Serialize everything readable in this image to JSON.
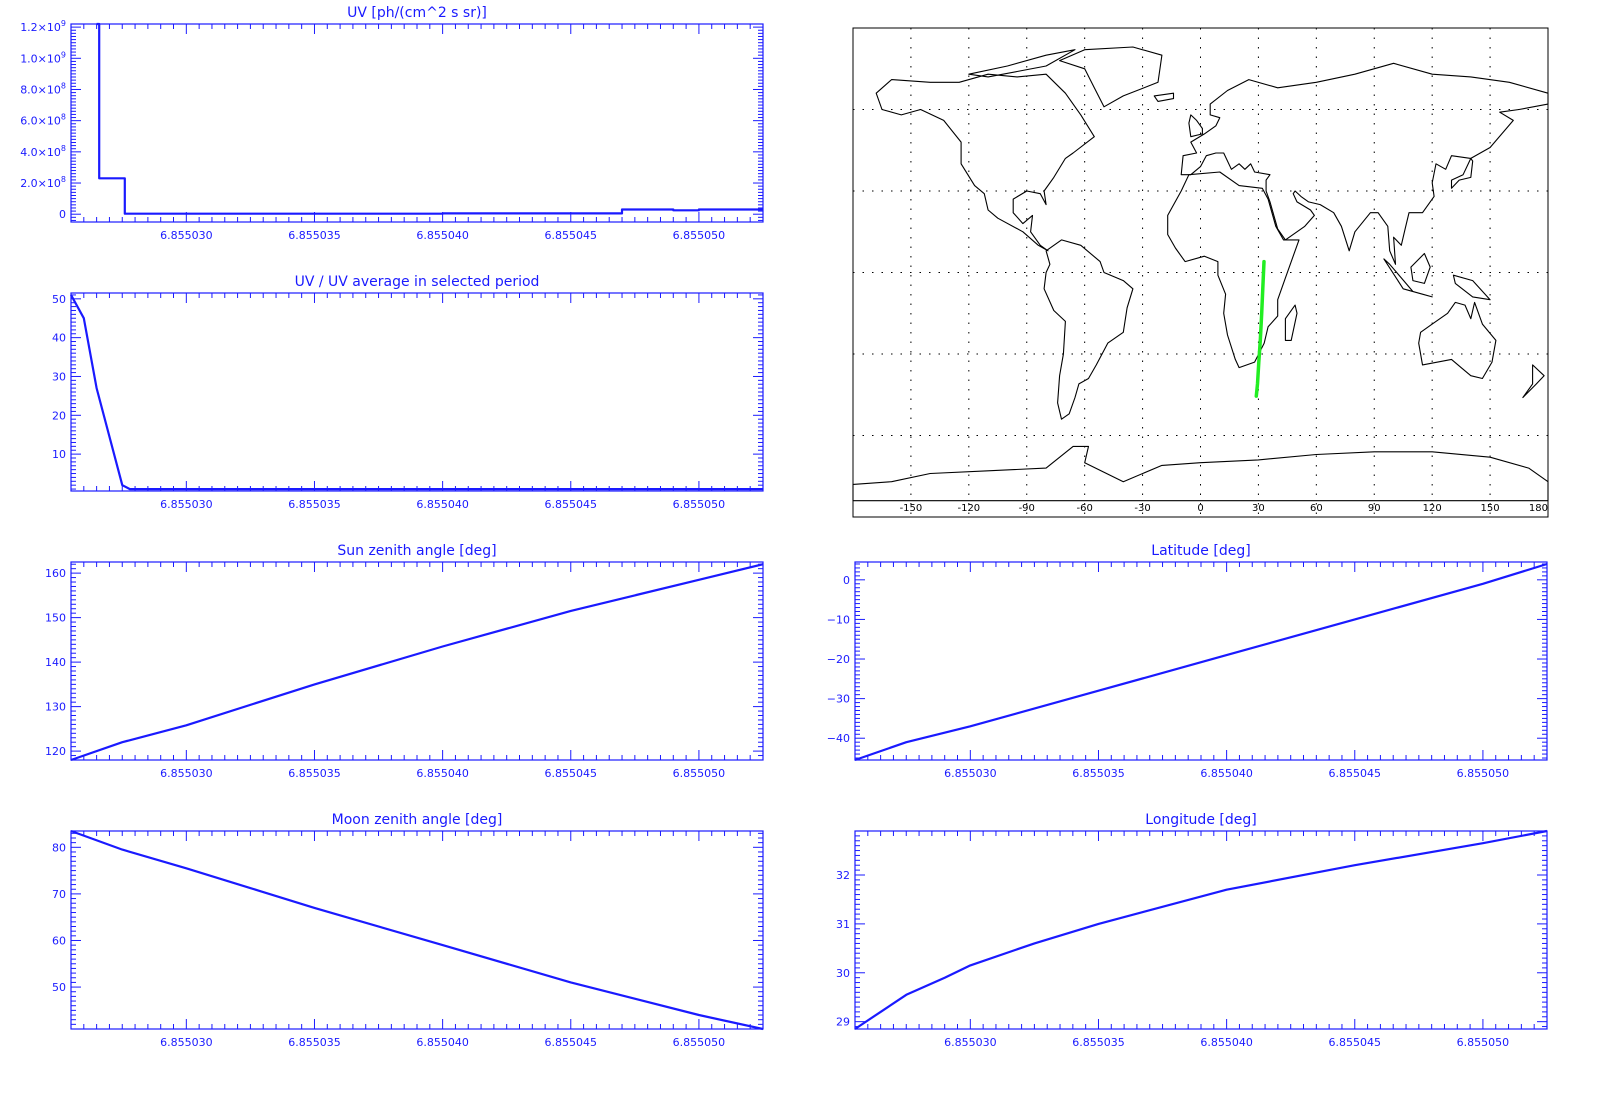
{
  "colors": {
    "plot": "#1a1aff",
    "map_track": "#22ee22",
    "map_lines": "#000000",
    "background": "#ffffff"
  },
  "chart_data": [
    {
      "id": "uv",
      "type": "line",
      "title": "UV [ph/(cm^2 s sr)]",
      "xlabel": "",
      "ylabel": "",
      "xlim": [
        6.8550255,
        6.8550525
      ],
      "ylim": [
        -50000000,
        1220000000
      ],
      "xticks": [
        6.85503,
        6.855035,
        6.85504,
        6.855045,
        6.85505
      ],
      "xtick_labels": [
        "6.855030",
        "6.855035",
        "6.855040",
        "6.855045",
        "6.855050"
      ],
      "yticks": [
        0,
        200000000,
        400000000,
        600000000,
        800000000,
        1000000000,
        1200000000
      ],
      "ytick_labels": [
        {
          "mant": "0",
          "exp": ""
        },
        {
          "mant": "2.0×10",
          "exp": "8"
        },
        {
          "mant": "4.0×10",
          "exp": "8"
        },
        {
          "mant": "6.0×10",
          "exp": "8"
        },
        {
          "mant": "8.0×10",
          "exp": "8"
        },
        {
          "mant": "1.0×10",
          "exp": "9"
        },
        {
          "mant": "1.2×10",
          "exp": "9"
        }
      ],
      "step": true,
      "series": [
        {
          "x": [
            6.8550265,
            6.8550266,
            6.8550275,
            6.8550276,
            6.85503,
            6.855035,
            6.85504,
            6.8550469,
            6.855047,
            6.855049,
            6.85505,
            6.8550525
          ],
          "y": [
            1220000000,
            230000000,
            230000000,
            3000000,
            3000000,
            3000000,
            5000000,
            5000000,
            30000000,
            25000000,
            30000000,
            30000000
          ]
        }
      ]
    },
    {
      "id": "uv_ratio",
      "type": "line",
      "title": "UV / UV average in selected period",
      "xlabel": "",
      "ylabel": "",
      "xlim": [
        6.8550255,
        6.8550525
      ],
      "ylim": [
        0.5,
        51.5
      ],
      "xticks": [
        6.85503,
        6.855035,
        6.85504,
        6.855045,
        6.85505
      ],
      "xtick_labels": [
        "6.855030",
        "6.855035",
        "6.855040",
        "6.855045",
        "6.855050"
      ],
      "yticks": [
        10,
        20,
        30,
        40,
        50
      ],
      "ytick_labels": [
        "10",
        "20",
        "30",
        "40",
        "50"
      ],
      "series": [
        {
          "x": [
            6.8550255,
            6.855026,
            6.8550265,
            6.8550275,
            6.8550278,
            6.8550525
          ],
          "y": [
            51,
            45,
            27,
            2,
            1,
            1
          ]
        }
      ]
    },
    {
      "id": "sun_zenith",
      "type": "line",
      "title": "Sun zenith angle [deg]",
      "xlabel": "",
      "ylabel": "",
      "xlim": [
        6.8550255,
        6.8550525
      ],
      "ylim": [
        118,
        162.5
      ],
      "xticks": [
        6.85503,
        6.855035,
        6.85504,
        6.855045,
        6.85505
      ],
      "xtick_labels": [
        "6.855030",
        "6.855035",
        "6.855040",
        "6.855045",
        "6.855050"
      ],
      "yticks": [
        120,
        130,
        140,
        150,
        160
      ],
      "ytick_labels": [
        "120",
        "130",
        "140",
        "150",
        "160"
      ],
      "series": [
        {
          "x": [
            6.8550255,
            6.8550275,
            6.85503,
            6.855035,
            6.85504,
            6.855045,
            6.85505,
            6.8550525
          ],
          "y": [
            118,
            122,
            125.8,
            135,
            143.5,
            151.5,
            158.5,
            162
          ]
        }
      ]
    },
    {
      "id": "moon_zenith",
      "type": "line",
      "title": "Moon zenith angle [deg]",
      "xlabel": "",
      "ylabel": "",
      "xlim": [
        6.8550255,
        6.8550525
      ],
      "ylim": [
        41,
        83.5
      ],
      "xticks": [
        6.85503,
        6.855035,
        6.85504,
        6.855045,
        6.85505
      ],
      "xtick_labels": [
        "6.855030",
        "6.855035",
        "6.855040",
        "6.855045",
        "6.855050"
      ],
      "yticks": [
        50,
        60,
        70,
        80
      ],
      "ytick_labels": [
        "50",
        "60",
        "70",
        "80"
      ],
      "series": [
        {
          "x": [
            6.8550255,
            6.8550275,
            6.85503,
            6.855035,
            6.85504,
            6.855045,
            6.85505,
            6.8550525
          ],
          "y": [
            83.5,
            79.5,
            75.5,
            67,
            59,
            51,
            44,
            41
          ]
        }
      ]
    },
    {
      "id": "latitude",
      "type": "line",
      "title": "Latitude [deg]",
      "xlabel": "",
      "ylabel": "",
      "xlim": [
        6.8550255,
        6.8550525
      ],
      "ylim": [
        -45.5,
        4.5
      ],
      "xticks": [
        6.85503,
        6.855035,
        6.85504,
        6.855045,
        6.85505
      ],
      "xtick_labels": [
        "6.855030",
        "6.855035",
        "6.855040",
        "6.855045",
        "6.855050"
      ],
      "yticks": [
        -40,
        -30,
        -20,
        -10,
        0
      ],
      "ytick_labels": [
        "−40",
        "−30",
        "−20",
        "−10",
        "0"
      ],
      "series": [
        {
          "x": [
            6.8550255,
            6.8550275,
            6.85503,
            6.855035,
            6.85504,
            6.855045,
            6.85505,
            6.8550525
          ],
          "y": [
            -45.5,
            -41,
            -37,
            -28,
            -19,
            -10,
            -1,
            4
          ]
        }
      ]
    },
    {
      "id": "longitude",
      "type": "line",
      "title": "Longitude [deg]",
      "xlabel": "",
      "ylabel": "",
      "xlim": [
        6.8550255,
        6.8550525
      ],
      "ylim": [
        28.85,
        32.9
      ],
      "xticks": [
        6.85503,
        6.855035,
        6.85504,
        6.855045,
        6.85505
      ],
      "xtick_labels": [
        "6.855030",
        "6.855035",
        "6.855040",
        "6.855045",
        "6.855050"
      ],
      "yticks": [
        29,
        30,
        31,
        32
      ],
      "ytick_labels": [
        "29",
        "30",
        "31",
        "32"
      ],
      "series": [
        {
          "x": [
            6.8550255,
            6.8550265,
            6.8550275,
            6.855029,
            6.85503,
            6.8550325,
            6.855035,
            6.85504,
            6.855045,
            6.85505,
            6.8550525
          ],
          "y": [
            28.85,
            29.2,
            29.55,
            29.9,
            30.15,
            30.6,
            31.0,
            31.7,
            32.2,
            32.65,
            32.9
          ]
        }
      ]
    },
    {
      "id": "world_map",
      "type": "scatter",
      "title": "",
      "xlim": [
        -180,
        180
      ],
      "ylim": [
        -90,
        90
      ],
      "xtick_labels": [
        "-150",
        "-120",
        "-90",
        "-60",
        "-30",
        "0",
        "30",
        "60",
        "90",
        "120",
        "150",
        "180"
      ],
      "xticks": [
        -150,
        -120,
        -90,
        -60,
        -30,
        0,
        30,
        60,
        90,
        120,
        150,
        180
      ],
      "grid_lons": [
        -150,
        -120,
        -90,
        -60,
        -30,
        0,
        30,
        60,
        90,
        120,
        150
      ],
      "grid_lats": [
        -60,
        -30,
        0,
        30,
        60
      ],
      "track": {
        "lon": [
          28.9,
          29.5,
          30.2,
          31.0,
          31.7,
          32.3,
          32.9
        ],
        "lat": [
          -45.5,
          -41,
          -33,
          -25,
          -15,
          -5,
          4
        ]
      }
    }
  ]
}
